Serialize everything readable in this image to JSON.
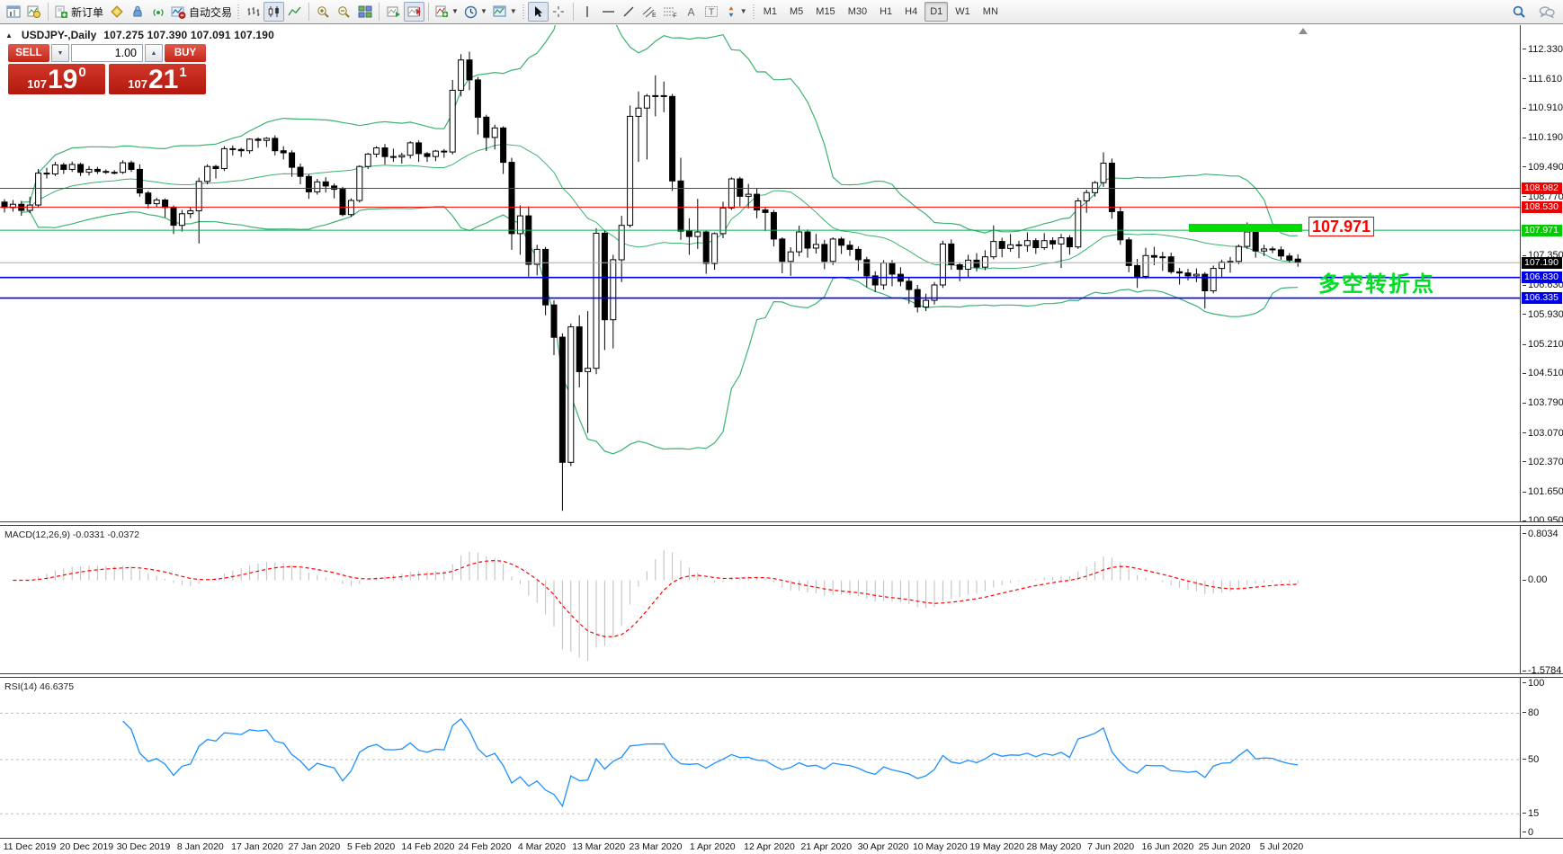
{
  "toolbar": {
    "new_order_label": "新订单",
    "autotrading_label": "自动交易",
    "timeframes": [
      "M1",
      "M5",
      "M15",
      "M30",
      "H1",
      "H4",
      "D1",
      "W1",
      "MN"
    ],
    "active_timeframe": "D1"
  },
  "chart_header": {
    "symbol_label": "USDJPY-,Daily",
    "ohlc": "107.275 107.390 107.091 107.190",
    "collapse_icon": "▲"
  },
  "trade_panel": {
    "sell_label": "SELL",
    "buy_label": "BUY",
    "volume": "1.00",
    "sell_price_prefix": "107",
    "sell_price_big": "19",
    "sell_price_sup": "0",
    "buy_price_prefix": "107",
    "buy_price_big": "21",
    "buy_price_sup": "1"
  },
  "chart_data": {
    "type": "candlestick+indicators",
    "symbol": "USDJPY-",
    "timeframe": "Daily",
    "title_ohlc": "107.275 107.390 107.091 107.190",
    "x_tick_labels": [
      "11 Dec 2019",
      "20 Dec 2019",
      "30 Dec 2019",
      "8 Jan 2020",
      "17 Jan 2020",
      "27 Jan 2020",
      "5 Feb 2020",
      "14 Feb 2020",
      "24 Feb 2020",
      "4 Mar 2020",
      "13 Mar 2020",
      "23 Mar 2020",
      "1 Apr 2020",
      "12 Apr 2020",
      "21 Apr 2020",
      "30 Apr 2020",
      "10 May 2020",
      "19 May 2020",
      "28 May 2020",
      "7 Jun 2020",
      "16 Jun 2020",
      "25 Jun 2020",
      "5 Jul 2020"
    ],
    "y_axis": {
      "plain_ticks": [
        "112.330",
        "111.610",
        "110.910",
        "110.190",
        "109.490",
        "108.770",
        "107.350",
        "106.630",
        "105.930",
        "105.210",
        "104.510",
        "103.790",
        "103.070",
        "102.370",
        "101.650",
        "100.950"
      ],
      "tags": [
        {
          "value": "108.982",
          "bg": "#ee0000",
          "fg": "#ffffff"
        },
        {
          "value": "108.530",
          "bg": "#ee0000",
          "fg": "#ffffff"
        },
        {
          "value": "107.971",
          "bg": "#00cc00",
          "fg": "#ffffff"
        },
        {
          "value": "107.190",
          "bg": "#000000",
          "fg": "#ffffff"
        },
        {
          "value": "106.830",
          "bg": "#0000e8",
          "fg": "#ffffff"
        },
        {
          "value": "106.335",
          "bg": "#0000e8",
          "fg": "#ffffff"
        }
      ]
    },
    "candles": [
      [
        108.65,
        108.72,
        108.4,
        108.52
      ],
      [
        108.52,
        108.7,
        108.42,
        108.6
      ],
      [
        108.6,
        108.68,
        108.32,
        108.45
      ],
      [
        108.45,
        108.78,
        108.38,
        108.58
      ],
      [
        108.58,
        109.45,
        108.52,
        109.35
      ],
      [
        109.35,
        109.48,
        109.22,
        109.33
      ],
      [
        109.33,
        109.62,
        109.28,
        109.55
      ],
      [
        109.55,
        109.6,
        109.33,
        109.44
      ],
      [
        109.44,
        109.63,
        109.38,
        109.56
      ],
      [
        109.56,
        109.6,
        109.28,
        109.37
      ],
      [
        109.37,
        109.52,
        109.29,
        109.44
      ],
      [
        109.44,
        109.5,
        109.33,
        109.39
      ],
      [
        109.39,
        109.44,
        109.33,
        109.37
      ],
      [
        109.37,
        109.42,
        109.32,
        109.37
      ],
      [
        109.37,
        109.66,
        109.33,
        109.6
      ],
      [
        109.6,
        109.65,
        109.38,
        109.44
      ],
      [
        109.44,
        109.56,
        108.78,
        108.87
      ],
      [
        108.87,
        108.92,
        108.5,
        108.61
      ],
      [
        108.61,
        108.76,
        108.53,
        108.7
      ],
      [
        108.7,
        108.74,
        108.28,
        108.52
      ],
      [
        108.52,
        108.57,
        107.88,
        108.09
      ],
      [
        108.09,
        108.46,
        107.94,
        108.37
      ],
      [
        108.37,
        108.52,
        108.26,
        108.44
      ],
      [
        108.44,
        109.24,
        107.65,
        109.15
      ],
      [
        109.15,
        109.56,
        109.08,
        109.51
      ],
      [
        109.51,
        109.55,
        109.22,
        109.46
      ],
      [
        109.46,
        110.0,
        109.4,
        109.94
      ],
      [
        109.94,
        110.02,
        109.78,
        109.92
      ],
      [
        109.92,
        109.96,
        109.74,
        109.89
      ],
      [
        109.89,
        110.19,
        109.82,
        110.17
      ],
      [
        110.17,
        110.21,
        109.96,
        110.14
      ],
      [
        110.14,
        110.22,
        109.98,
        110.19
      ],
      [
        110.19,
        110.26,
        109.78,
        109.89
      ],
      [
        109.89,
        110.0,
        109.68,
        109.84
      ],
      [
        109.84,
        109.9,
        109.26,
        109.49
      ],
      [
        109.49,
        109.58,
        109.08,
        109.27
      ],
      [
        109.27,
        109.32,
        108.73,
        108.9
      ],
      [
        108.9,
        109.21,
        108.83,
        109.14
      ],
      [
        109.14,
        109.25,
        108.88,
        109.04
      ],
      [
        109.04,
        109.1,
        108.74,
        108.96
      ],
      [
        108.96,
        109.02,
        108.31,
        108.35
      ],
      [
        108.35,
        108.74,
        108.3,
        108.69
      ],
      [
        108.69,
        109.54,
        108.64,
        109.51
      ],
      [
        109.51,
        109.84,
        109.45,
        109.81
      ],
      [
        109.81,
        110.0,
        109.73,
        109.96
      ],
      [
        109.96,
        110.05,
        109.56,
        109.75
      ],
      [
        109.75,
        109.94,
        109.62,
        109.74
      ],
      [
        109.74,
        109.84,
        109.58,
        109.78
      ],
      [
        109.78,
        110.12,
        109.7,
        110.08
      ],
      [
        110.08,
        110.14,
        109.62,
        109.82
      ],
      [
        109.82,
        109.86,
        109.62,
        109.75
      ],
      [
        109.75,
        109.91,
        109.64,
        109.88
      ],
      [
        109.88,
        109.93,
        109.72,
        109.86
      ],
      [
        109.86,
        111.6,
        109.8,
        111.35
      ],
      [
        111.35,
        112.22,
        111.2,
        112.08
      ],
      [
        112.08,
        112.28,
        111.35,
        111.6
      ],
      [
        111.6,
        111.67,
        110.28,
        110.7
      ],
      [
        110.7,
        110.76,
        109.88,
        110.21
      ],
      [
        110.21,
        110.52,
        109.92,
        110.44
      ],
      [
        110.44,
        110.48,
        109.33,
        109.61
      ],
      [
        109.61,
        109.72,
        107.5,
        107.89
      ],
      [
        107.89,
        108.57,
        107.38,
        108.32
      ],
      [
        108.32,
        108.55,
        106.85,
        107.15
      ],
      [
        107.15,
        107.62,
        106.88,
        107.51
      ],
      [
        107.51,
        107.57,
        105.92,
        106.17
      ],
      [
        106.17,
        106.28,
        104.96,
        105.39
      ],
      [
        105.39,
        105.48,
        101.2,
        102.37
      ],
      [
        102.37,
        105.72,
        102.28,
        105.64
      ],
      [
        105.64,
        105.92,
        104.18,
        104.56
      ],
      [
        104.56,
        106.02,
        103.08,
        104.64
      ],
      [
        104.64,
        108.02,
        104.5,
        107.9
      ],
      [
        107.9,
        107.96,
        105.08,
        105.81
      ],
      [
        105.81,
        107.38,
        105.12,
        107.26
      ],
      [
        107.26,
        108.32,
        106.72,
        108.09
      ],
      [
        108.09,
        110.98,
        108.04,
        110.72
      ],
      [
        110.72,
        111.32,
        109.62,
        110.92
      ],
      [
        110.92,
        111.26,
        109.68,
        111.21
      ],
      [
        111.21,
        111.71,
        110.72,
        111.22
      ],
      [
        111.22,
        111.56,
        110.82,
        111.2
      ],
      [
        111.2,
        111.26,
        108.92,
        109.16
      ],
      [
        109.16,
        109.72,
        107.74,
        107.95
      ],
      [
        107.95,
        108.26,
        107.38,
        107.82
      ],
      [
        107.82,
        108.73,
        107.52,
        107.93
      ],
      [
        107.93,
        107.96,
        106.92,
        107.17
      ],
      [
        107.17,
        107.92,
        107.02,
        107.89
      ],
      [
        107.89,
        108.66,
        107.78,
        108.51
      ],
      [
        108.51,
        109.25,
        108.46,
        109.21
      ],
      [
        109.21,
        109.26,
        108.55,
        108.79
      ],
      [
        108.79,
        109.09,
        108.5,
        108.84
      ],
      [
        108.84,
        108.98,
        108.26,
        108.46
      ],
      [
        108.46,
        108.54,
        107.95,
        108.4
      ],
      [
        108.4,
        108.46,
        107.58,
        107.76
      ],
      [
        107.76,
        107.8,
        106.93,
        107.22
      ],
      [
        107.22,
        107.56,
        106.87,
        107.45
      ],
      [
        107.45,
        108.08,
        107.34,
        107.93
      ],
      [
        107.93,
        107.99,
        107.31,
        107.54
      ],
      [
        107.54,
        107.88,
        107.41,
        107.63
      ],
      [
        107.63,
        107.74,
        107.03,
        107.22
      ],
      [
        107.22,
        107.8,
        107.13,
        107.76
      ],
      [
        107.76,
        107.81,
        107.4,
        107.61
      ],
      [
        107.61,
        107.72,
        107.35,
        107.51
      ],
      [
        107.51,
        107.58,
        106.99,
        107.26
      ],
      [
        107.26,
        107.33,
        106.6,
        106.87
      ],
      [
        106.87,
        106.98,
        106.48,
        106.65
      ],
      [
        106.65,
        107.25,
        106.54,
        107.18
      ],
      [
        107.18,
        107.25,
        106.62,
        106.91
      ],
      [
        106.91,
        107.08,
        106.62,
        106.74
      ],
      [
        106.74,
        106.82,
        106.2,
        106.54
      ],
      [
        106.54,
        106.65,
        105.99,
        106.12
      ],
      [
        106.12,
        106.44,
        106.02,
        106.28
      ],
      [
        106.28,
        106.72,
        106.18,
        106.65
      ],
      [
        106.65,
        107.72,
        106.58,
        107.64
      ],
      [
        107.64,
        107.75,
        107.02,
        107.14
      ],
      [
        107.14,
        107.2,
        106.74,
        107.03
      ],
      [
        107.03,
        107.38,
        106.82,
        107.25
      ],
      [
        107.25,
        107.42,
        106.98,
        107.08
      ],
      [
        107.08,
        107.49,
        107.01,
        107.33
      ],
      [
        107.33,
        108.09,
        107.27,
        107.7
      ],
      [
        107.7,
        107.79,
        107.32,
        107.53
      ],
      [
        107.53,
        107.88,
        107.45,
        107.62
      ],
      [
        107.62,
        107.72,
        107.3,
        107.6
      ],
      [
        107.6,
        107.92,
        107.45,
        107.72
      ],
      [
        107.72,
        107.78,
        107.4,
        107.55
      ],
      [
        107.55,
        107.9,
        107.5,
        107.72
      ],
      [
        107.72,
        107.8,
        107.51,
        107.64
      ],
      [
        107.64,
        107.88,
        107.06,
        107.79
      ],
      [
        107.79,
        107.85,
        107.38,
        107.57
      ],
      [
        107.57,
        108.75,
        107.52,
        108.68
      ],
      [
        108.68,
        108.95,
        108.39,
        108.88
      ],
      [
        108.88,
        109.16,
        108.78,
        109.12
      ],
      [
        109.12,
        109.85,
        109.02,
        109.59
      ],
      [
        109.59,
        109.7,
        108.25,
        108.42
      ],
      [
        108.42,
        108.53,
        107.62,
        107.74
      ],
      [
        107.74,
        107.8,
        106.96,
        107.12
      ],
      [
        107.12,
        107.28,
        106.58,
        106.86
      ],
      [
        106.86,
        107.55,
        106.8,
        107.36
      ],
      [
        107.36,
        107.57,
        107.13,
        107.32
      ],
      [
        107.32,
        107.45,
        106.99,
        107.33
      ],
      [
        107.33,
        107.43,
        106.92,
        106.97
      ],
      [
        106.97,
        107.06,
        106.66,
        106.94
      ],
      [
        106.94,
        107.04,
        106.76,
        106.87
      ],
      [
        106.87,
        107.05,
        106.72,
        106.91
      ],
      [
        106.91,
        106.96,
        106.08,
        106.51
      ],
      [
        106.51,
        107.12,
        106.45,
        107.05
      ],
      [
        107.05,
        107.26,
        106.84,
        107.2
      ],
      [
        107.2,
        107.33,
        106.95,
        107.22
      ],
      [
        107.22,
        107.63,
        107.15,
        107.58
      ],
      [
        107.58,
        108.16,
        107.52,
        107.93
      ],
      [
        107.93,
        107.97,
        107.31,
        107.47
      ],
      [
        107.47,
        107.62,
        107.35,
        107.52
      ],
      [
        107.52,
        107.58,
        107.42,
        107.5
      ],
      [
        107.5,
        107.58,
        107.26,
        107.35
      ],
      [
        107.35,
        107.42,
        107.18,
        107.25
      ],
      [
        107.275,
        107.39,
        107.091,
        107.19
      ]
    ],
    "overlays": {
      "bollinger": {
        "period": 20,
        "deviation": 2,
        "color": "#3cb371"
      },
      "hlines": [
        {
          "price": 108.982,
          "color": "#fa0000",
          "width": 1
        },
        {
          "price": 108.53,
          "color": "#fa0000",
          "width": 1
        },
        {
          "price": 107.971,
          "color": "#00b050",
          "width": 1
        },
        {
          "price": 106.83,
          "color": "#0000f0",
          "width": 1.6
        },
        {
          "price": 106.335,
          "color": "#0000f0",
          "width": 1.6
        }
      ],
      "bid_line": {
        "price": 107.19,
        "color": "#ababab"
      },
      "highlight_bar": {
        "price": 107.971,
        "color": "#00dc00"
      },
      "callout": {
        "text": "107.971",
        "color": "#ff0000"
      },
      "annotation": {
        "text": "多空转折点",
        "color": "#00dd22"
      }
    },
    "macd": {
      "label": "MACD(12,26,9) -0.0331 -0.0372",
      "fast": 12,
      "slow": 26,
      "signal": 9,
      "axis_ticks": [
        {
          "text": "0.8034",
          "value": 0.8034
        },
        {
          "text": "0.00",
          "value": 0.0
        },
        {
          "text": "-1.5784",
          "value": -1.5784
        }
      ],
      "hist_color": "#bdbdbd",
      "signal_color": "#ff0000"
    },
    "rsi": {
      "label": "RSI(14) 46.6375",
      "period": 14,
      "axis_ticks": [
        {
          "text": "100",
          "value": 100
        },
        {
          "text": "80",
          "value": 80
        },
        {
          "text": "50",
          "value": 50
        },
        {
          "text": "15",
          "value": 15
        },
        {
          "text": "0",
          "value": 0
        }
      ],
      "levels": [
        80,
        50,
        15
      ],
      "color": "#1e90ff",
      "level_color": "#bfbfbf"
    }
  }
}
